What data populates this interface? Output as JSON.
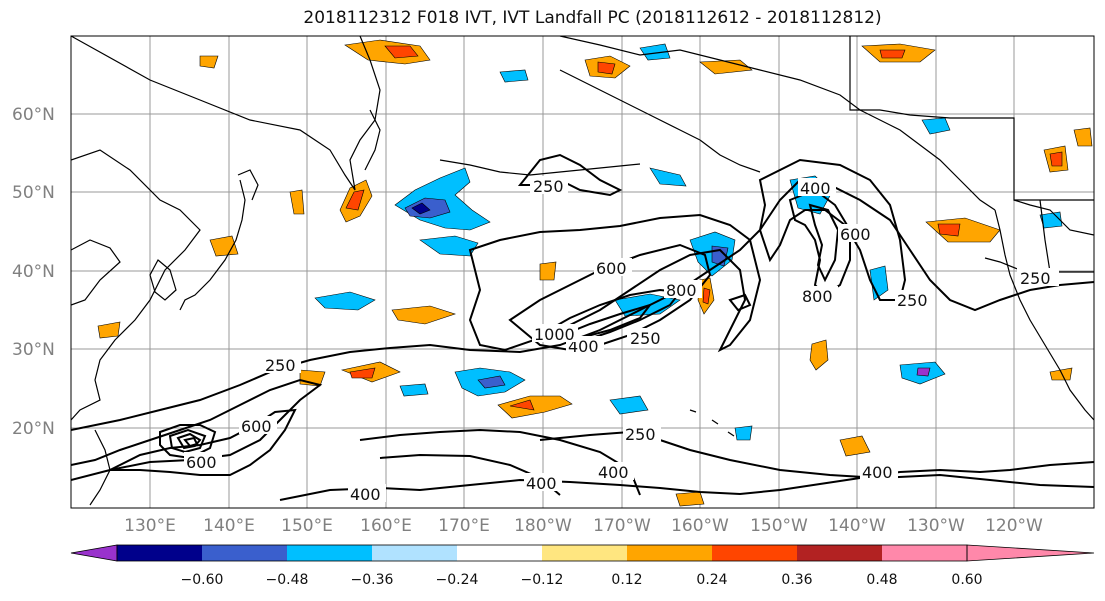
{
  "title": "2018112312 F018 IVT, IVT Landfall PC (2018112612 - 2018112812)",
  "lat_labels": [
    "60°N",
    "50°N",
    "40°N",
    "30°N",
    "20°N"
  ],
  "lon_labels": [
    "130°E",
    "140°E",
    "150°E",
    "160°E",
    "170°E",
    "180°W",
    "170°W",
    "160°W",
    "150°W",
    "140°W",
    "130°W",
    "120°W"
  ],
  "contour_labels": [
    "250",
    "250",
    "250",
    "250",
    "250",
    "250",
    "400",
    "400",
    "400",
    "400",
    "400",
    "400",
    "600",
    "600",
    "600",
    "600",
    "800",
    "800",
    "1000"
  ],
  "colorbar": {
    "tick_labels": [
      "−0.60",
      "−0.48",
      "−0.36",
      "−0.24",
      "−0.12",
      "0.12",
      "0.24",
      "0.36",
      "0.48",
      "0.60"
    ],
    "colors": [
      "#9932cc",
      "#00008b",
      "#3a5fcd",
      "#00bfff",
      "#b0e2ff",
      "#ffffff",
      "#ffe680",
      "#ffa500",
      "#ff4500",
      "#b22222",
      "#ff88aa"
    ]
  },
  "map_colors": {
    "land_line": "#000000",
    "grid": "#999999",
    "contour": "#000000"
  }
}
